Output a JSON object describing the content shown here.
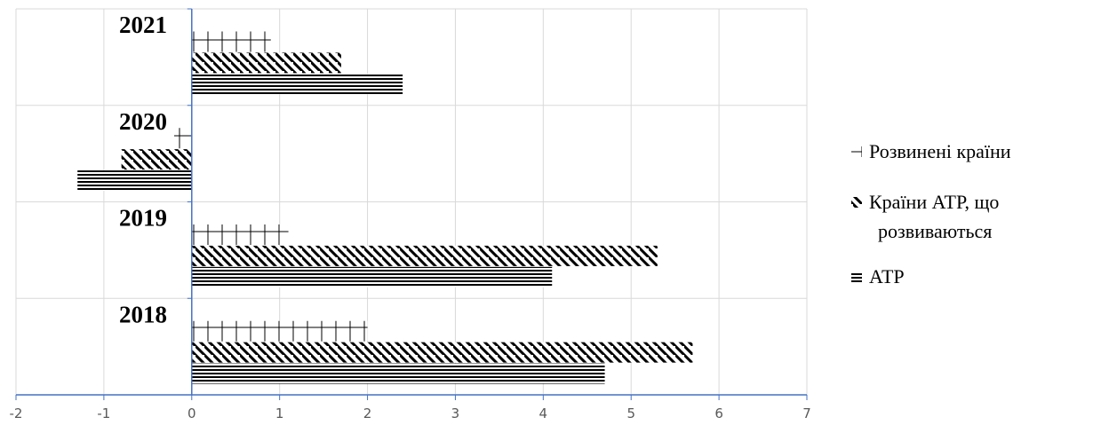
{
  "chart_data": {
    "type": "bar",
    "orientation": "horizontal",
    "categories": [
      "2018",
      "2019",
      "2020",
      "2021"
    ],
    "series": [
      {
        "name": "АТР",
        "values": [
          4.7,
          4.1,
          -1.3,
          2.4
        ],
        "pattern": "horizontal-stripes"
      },
      {
        "name": "Країни АТР, що розвиваються",
        "values": [
          5.7,
          5.3,
          -0.8,
          1.7
        ],
        "pattern": "diagonal-stripes"
      },
      {
        "name": "Розвинені країни",
        "values": [
          2.0,
          1.1,
          -0.2,
          0.9
        ],
        "pattern": "grid"
      }
    ],
    "xlim": [
      -2,
      7
    ],
    "xticks": [
      "-2",
      "-1",
      "0",
      "1",
      "2",
      "3",
      "4",
      "5",
      "6",
      "7"
    ],
    "grid": true,
    "legend_position": "right",
    "legend": {
      "entries": [
        {
          "series": 2,
          "lines": [
            "Розвинені країни"
          ]
        },
        {
          "series": 1,
          "lines": [
            "Країни АТР, що",
            "розвиваються"
          ]
        },
        {
          "series": 0,
          "lines": [
            "АТР"
          ]
        }
      ]
    },
    "colors": {
      "bar_pattern": "#000000",
      "axis": "#4472c4",
      "grid": "#d9d9d9"
    }
  }
}
